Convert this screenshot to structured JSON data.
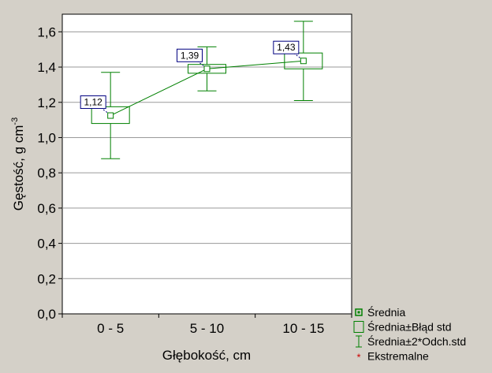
{
  "chart_data": {
    "type": "box",
    "categories": [
      "0 - 5",
      "5 - 10",
      "10 - 15"
    ],
    "mean": [
      1.125,
      1.39,
      1.435
    ],
    "mean_labels": [
      "1,12",
      "1,39",
      "1,43"
    ],
    "se_low": [
      1.08,
      1.365,
      1.39
    ],
    "se_high": [
      1.175,
      1.415,
      1.48
    ],
    "sd2_low": [
      0.88,
      1.265,
      1.21
    ],
    "sd2_high": [
      1.37,
      1.515,
      1.66
    ],
    "ylim": [
      0,
      1.7
    ],
    "yticks": [
      0,
      0.2,
      0.4,
      0.6,
      0.8,
      1.0,
      1.2,
      1.4,
      1.6
    ],
    "ytick_labels": [
      "0,0",
      "0,2",
      "0,4",
      "0,6",
      "0,8",
      "1,0",
      "1,2",
      "1,4",
      "1,6"
    ],
    "xlabel": "Głębokość, cm",
    "ylabel_main": "Gęstość, g cm",
    "ylabel_sup": "-3",
    "grid": "horizontal",
    "legend_position": "bottom-right",
    "colors": {
      "series": "#008000",
      "background": "#d4d0c8",
      "plot_background": "#ffffff",
      "label_border": "#000080",
      "extreme": "#cc0000"
    },
    "legend": [
      {
        "label": "Średnia",
        "icon": "small-square-icon"
      },
      {
        "label": "Średnia±Błąd std",
        "icon": "box-icon"
      },
      {
        "label": "Średnia±2*Odch.std",
        "icon": "whisker-icon"
      },
      {
        "label": "Ekstremalne",
        "icon": "asterisk-icon"
      }
    ]
  }
}
